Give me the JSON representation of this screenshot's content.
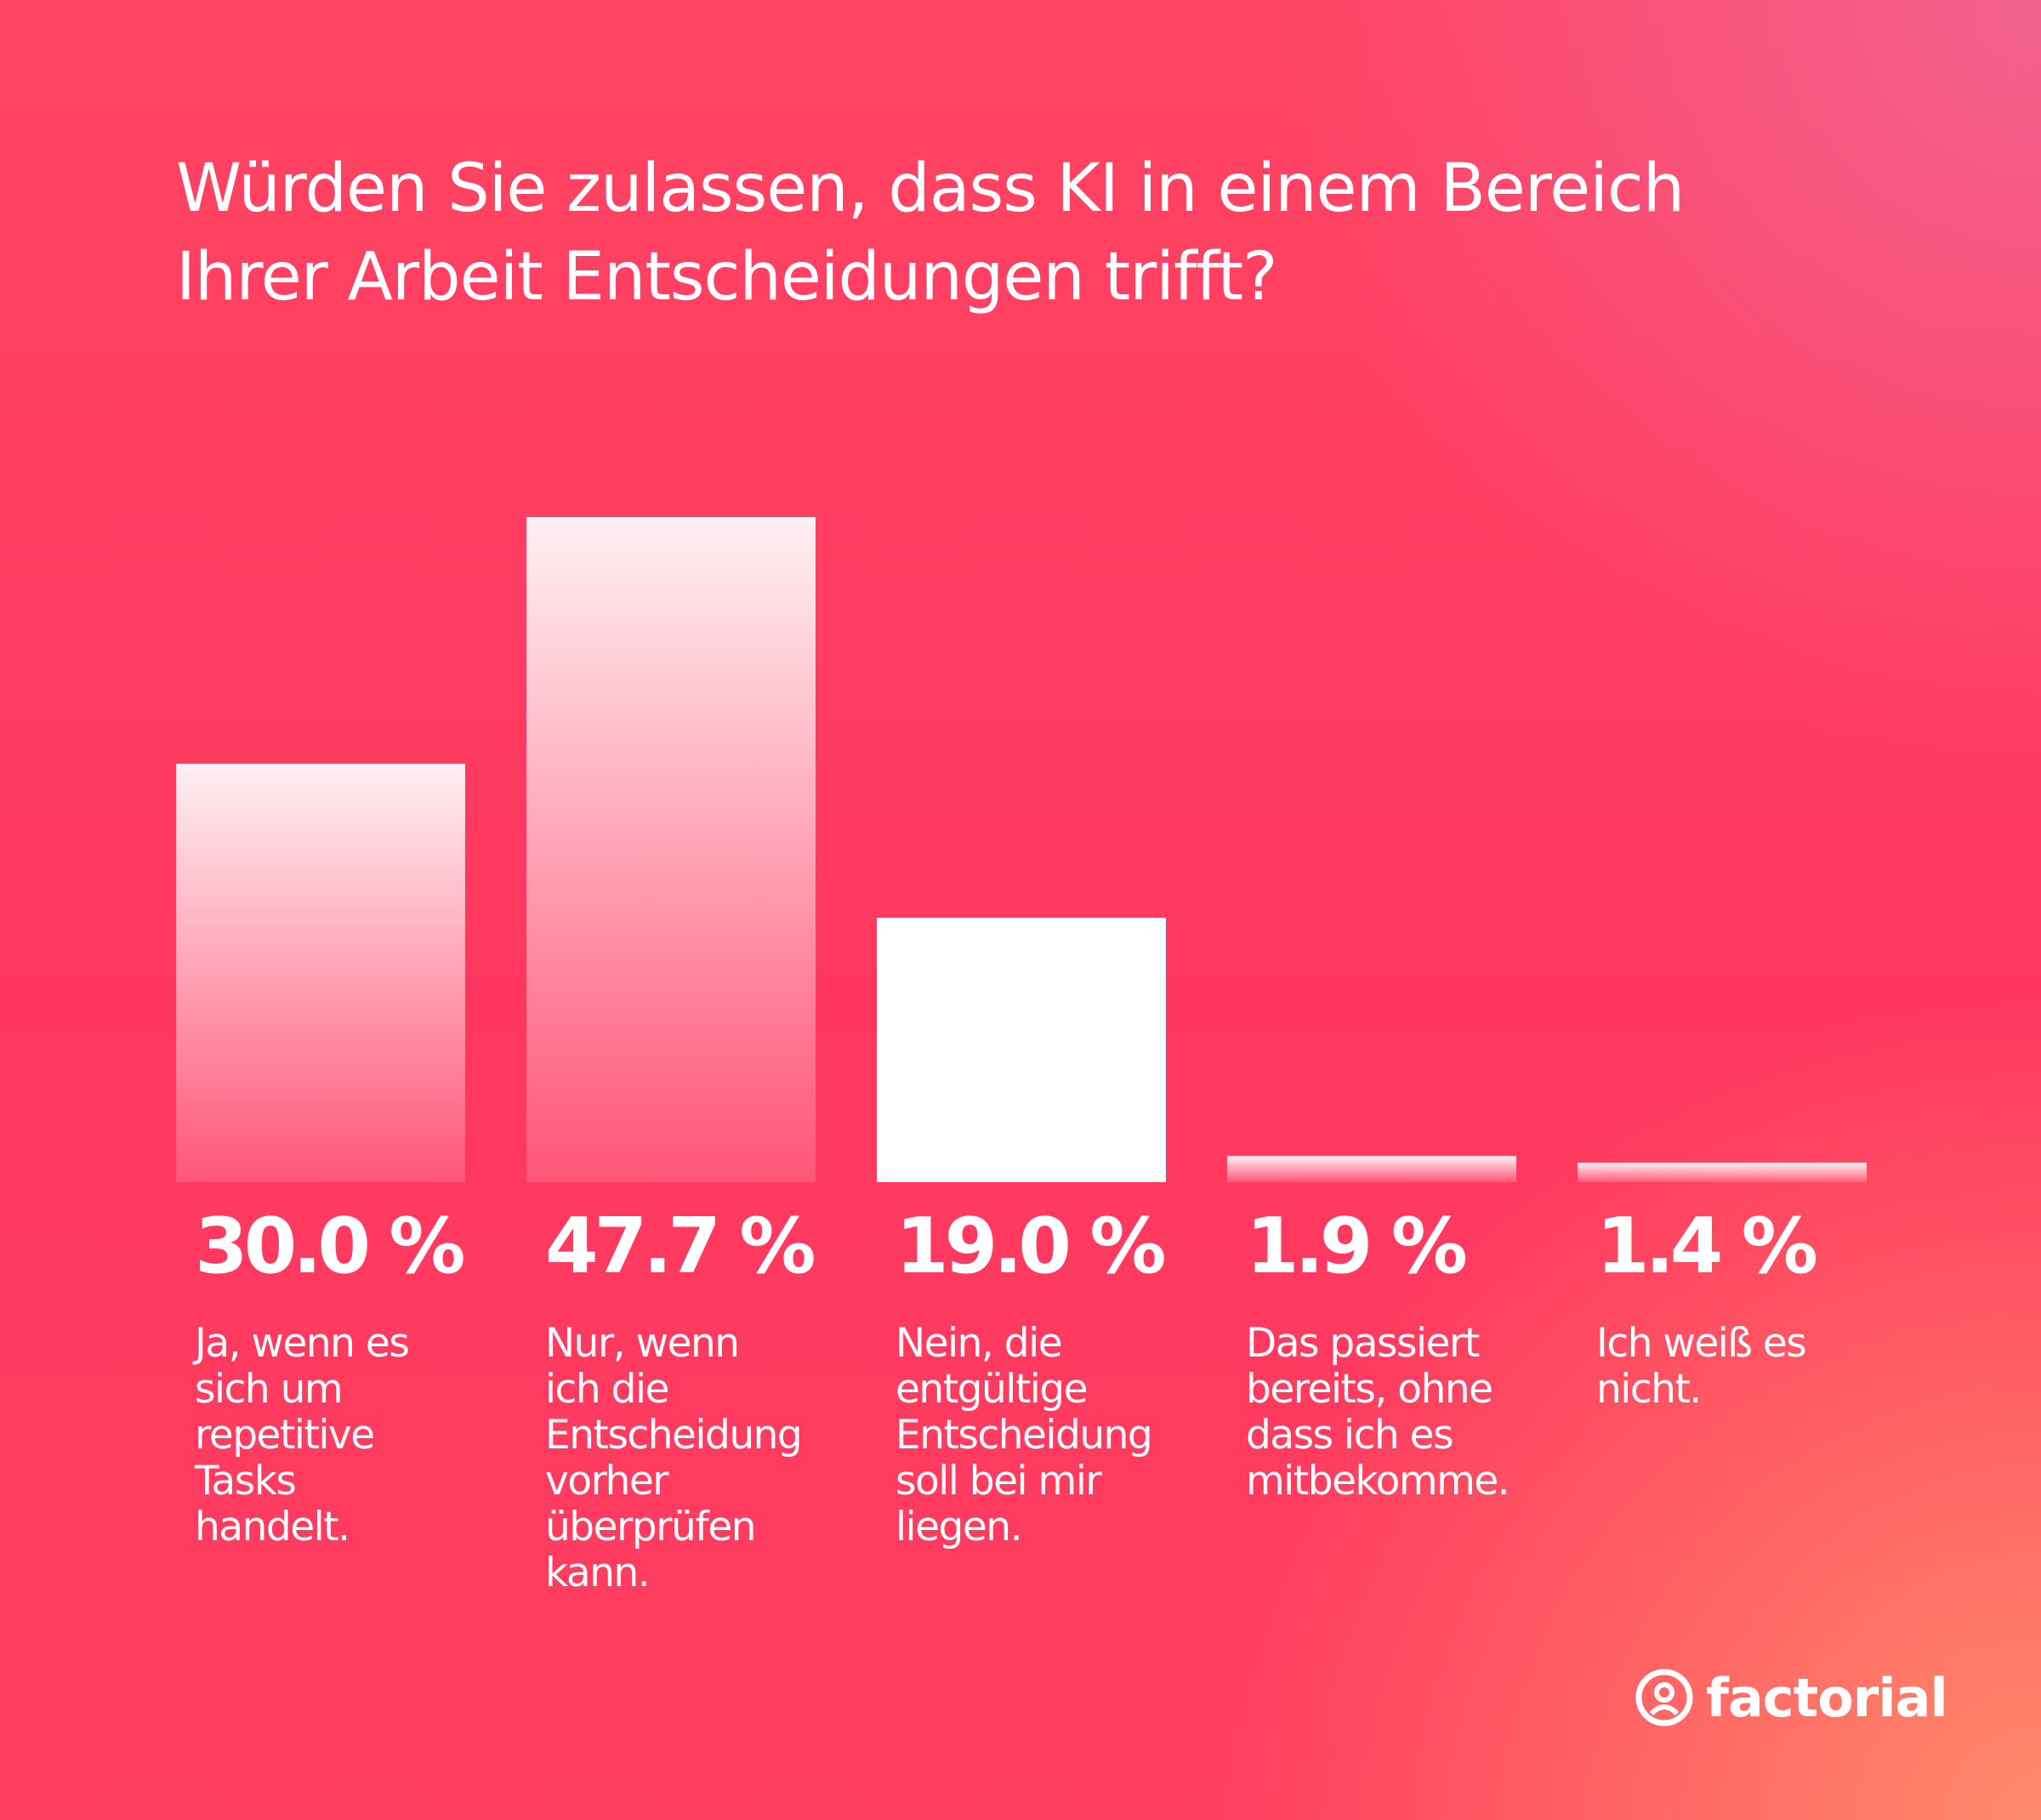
{
  "chart_data": {
    "type": "bar",
    "title": "Würden Sie zulassen, dass KI in einem Bereich Ihrer Arbeit Entscheidungen trifft?",
    "categories": [
      "Ja, wenn es sich um repetitive Tasks handelt.",
      "Nur, wenn ich die Entscheidung vorher überprüfen kann.",
      "Nein, die entgültige Entscheidung soll bei mir liegen.",
      "Das passiert bereits, ohne dass ich es mitbekomme.",
      "Ich weiß es nicht."
    ],
    "values": [
      30.0,
      47.7,
      19.0,
      1.9,
      1.4
    ],
    "value_labels": [
      "30.0 %",
      "47.7 %",
      "19.0 %",
      "1.9 %",
      "1.4 %"
    ],
    "color": "#ffffff",
    "highlight": 2
  },
  "logo": "factorial"
}
